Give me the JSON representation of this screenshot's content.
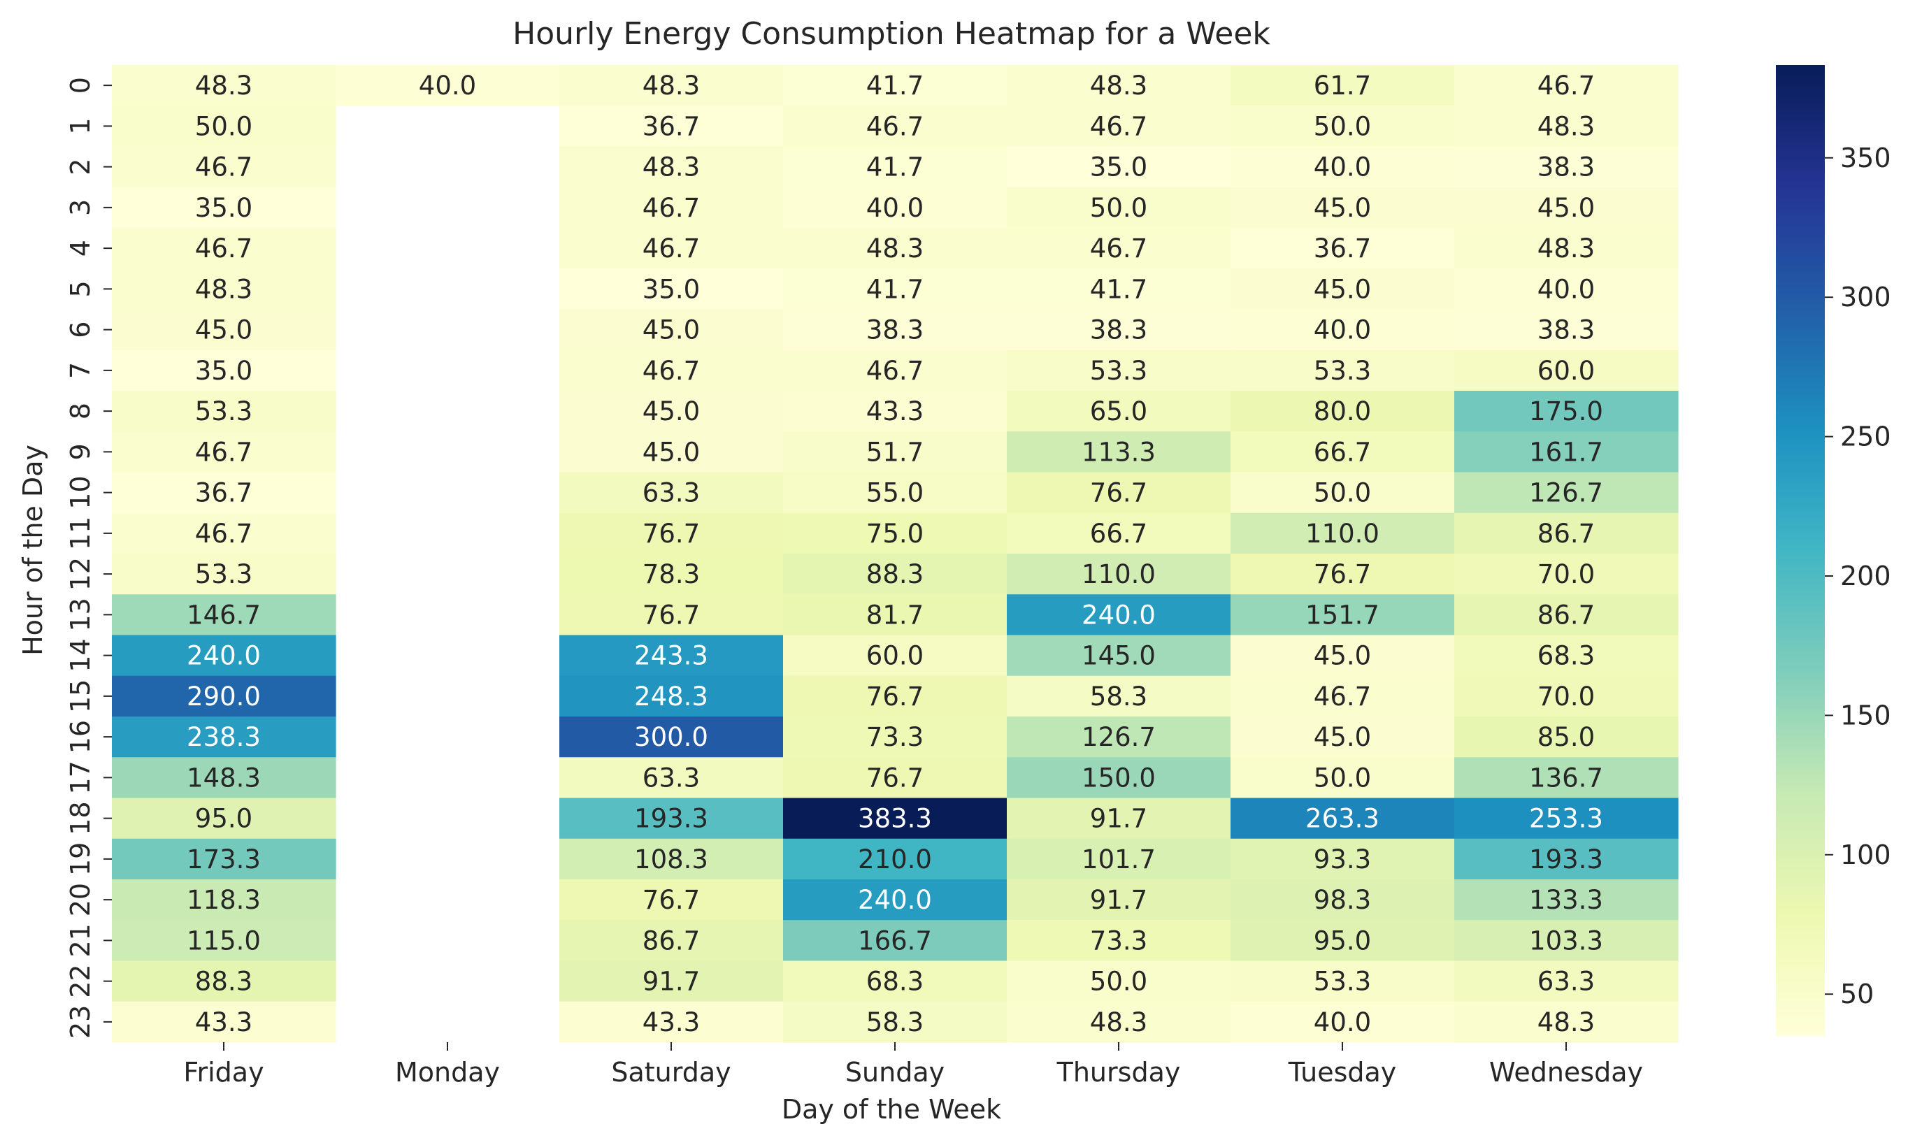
{
  "chart_data": {
    "type": "heatmap",
    "title": "Hourly Energy Consumption Heatmap for a Week",
    "xlabel": "Day of the Week",
    "ylabel": "Hour of the Day",
    "x_categories": [
      "Friday",
      "Monday",
      "Saturday",
      "Sunday",
      "Thursday",
      "Tuesday",
      "Wednesday"
    ],
    "y_categories": [
      "0",
      "1",
      "2",
      "3",
      "4",
      "5",
      "6",
      "7",
      "8",
      "9",
      "10",
      "11",
      "12",
      "13",
      "14",
      "15",
      "16",
      "17",
      "18",
      "19",
      "20",
      "21",
      "22",
      "23"
    ],
    "values": [
      [
        48.3,
        40.0,
        48.3,
        41.7,
        48.3,
        61.7,
        46.7
      ],
      [
        50.0,
        null,
        36.7,
        46.7,
        46.7,
        50.0,
        48.3
      ],
      [
        46.7,
        null,
        48.3,
        41.7,
        35.0,
        40.0,
        38.3
      ],
      [
        35.0,
        null,
        46.7,
        40.0,
        50.0,
        45.0,
        45.0
      ],
      [
        46.7,
        null,
        46.7,
        48.3,
        46.7,
        36.7,
        48.3
      ],
      [
        48.3,
        null,
        35.0,
        41.7,
        41.7,
        45.0,
        40.0
      ],
      [
        45.0,
        null,
        45.0,
        38.3,
        38.3,
        40.0,
        38.3
      ],
      [
        35.0,
        null,
        46.7,
        46.7,
        53.3,
        53.3,
        60.0
      ],
      [
        53.3,
        null,
        45.0,
        43.3,
        65.0,
        80.0,
        175.0
      ],
      [
        46.7,
        null,
        45.0,
        51.7,
        113.3,
        66.7,
        161.7
      ],
      [
        36.7,
        null,
        63.3,
        55.0,
        76.7,
        50.0,
        126.7
      ],
      [
        46.7,
        null,
        76.7,
        75.0,
        66.7,
        110.0,
        86.7
      ],
      [
        53.3,
        null,
        78.3,
        88.3,
        110.0,
        76.7,
        70.0
      ],
      [
        146.7,
        null,
        76.7,
        81.7,
        240.0,
        151.7,
        86.7
      ],
      [
        240.0,
        null,
        243.3,
        60.0,
        145.0,
        45.0,
        68.3
      ],
      [
        290.0,
        null,
        248.3,
        76.7,
        58.3,
        46.7,
        70.0
      ],
      [
        238.3,
        null,
        300.0,
        73.3,
        126.7,
        45.0,
        85.0
      ],
      [
        148.3,
        null,
        63.3,
        76.7,
        150.0,
        50.0,
        136.7
      ],
      [
        95.0,
        null,
        193.3,
        383.3,
        91.7,
        263.3,
        253.3
      ],
      [
        173.3,
        null,
        108.3,
        210.0,
        101.7,
        93.3,
        193.3
      ],
      [
        118.3,
        null,
        76.7,
        240.0,
        91.7,
        98.3,
        133.3
      ],
      [
        115.0,
        null,
        86.7,
        166.7,
        73.3,
        95.0,
        103.3
      ],
      [
        88.3,
        null,
        91.7,
        68.3,
        50.0,
        53.3,
        63.3
      ],
      [
        43.3,
        null,
        43.3,
        58.3,
        48.3,
        40.0,
        48.3
      ]
    ],
    "value_format": "0.1f",
    "colormap": "YlGnBu",
    "color_range": [
      35.0,
      383.3
    ],
    "colorbar_ticks": [
      50,
      100,
      150,
      200,
      250,
      300,
      350
    ],
    "colorbar_tick_labels": [
      "50",
      "100",
      "150",
      "200",
      "250",
      "300",
      "350"
    ],
    "colormap_stops": [
      "#ffffd9",
      "#edf8b1",
      "#c7e9b4",
      "#7fcdbb",
      "#41b6c4",
      "#1d91c0",
      "#225ea8",
      "#253494",
      "#081d58"
    ]
  }
}
